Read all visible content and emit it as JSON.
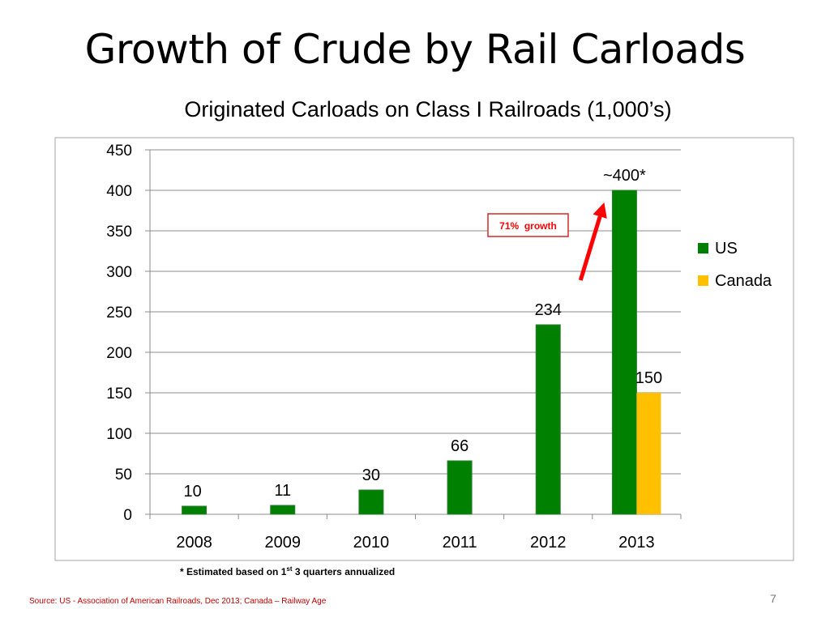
{
  "slide": {
    "title": "Growth of Crude by Rail Carloads",
    "footnote_lead": "* Estimated based on 1",
    "footnote_sup": "st",
    "footnote_tail": " 3 quarters annualized",
    "source": "Source: US - Association of American Railroads, Dec 2013; Canada – Railway Age",
    "page_number": "7"
  },
  "chart_data": {
    "type": "bar",
    "title": "Originated Carloads on Class I Railroads (1,000’s)",
    "categories": [
      "2008",
      "2009",
      "2010",
      "2011",
      "2012",
      "2013"
    ],
    "series": [
      {
        "name": "US",
        "color": "#008000",
        "values": [
          10,
          11,
          30,
          66,
          234,
          400
        ],
        "labels": [
          "10",
          "11",
          "30",
          "66",
          "234",
          "~400*"
        ]
      },
      {
        "name": "Canada",
        "color": "#ffc000",
        "values": [
          null,
          null,
          null,
          null,
          null,
          150
        ],
        "labels": [
          "",
          "",
          "",
          "",
          "",
          "150"
        ]
      }
    ],
    "ylim": [
      0,
      450
    ],
    "yticks": [
      0,
      50,
      100,
      150,
      200,
      250,
      300,
      350,
      400,
      450
    ],
    "grid": true,
    "legend_position": "right",
    "annotation": {
      "text": "71%  growth",
      "color": "#ff0000",
      "from_category": "2012",
      "to_category": "2013"
    }
  }
}
